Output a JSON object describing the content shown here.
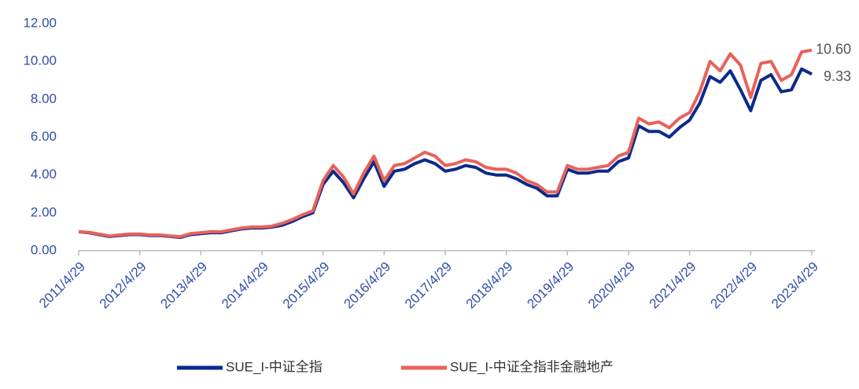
{
  "chart_data": {
    "type": "line",
    "categories": [
      "2011/4/29",
      null,
      null,
      null,
      null,
      null,
      "2012/4/29",
      null,
      null,
      null,
      null,
      null,
      "2013/4/29",
      null,
      null,
      null,
      null,
      null,
      "2014/4/29",
      null,
      null,
      null,
      null,
      null,
      "2015/4/29",
      null,
      null,
      null,
      null,
      null,
      "2016/4/29",
      null,
      null,
      null,
      null,
      null,
      "2017/4/29",
      null,
      null,
      null,
      null,
      null,
      "2018/4/29",
      null,
      null,
      null,
      null,
      null,
      "2019/4/29",
      null,
      null,
      null,
      null,
      null,
      "2020/4/29",
      null,
      null,
      null,
      null,
      null,
      "2021/4/29",
      null,
      null,
      null,
      null,
      null,
      "2022/4/29",
      null,
      null,
      null,
      null,
      null,
      "2023/4/29"
    ],
    "series": [
      {
        "name": "SUE_I-中证全指",
        "color": "#0b2a8c",
        "end_label": "9.33",
        "values": [
          1.0,
          0.95,
          0.85,
          0.75,
          0.8,
          0.85,
          0.85,
          0.8,
          0.8,
          0.75,
          0.7,
          0.85,
          0.9,
          0.95,
          0.95,
          1.05,
          1.15,
          1.2,
          1.2,
          1.25,
          1.35,
          1.55,
          1.8,
          2.0,
          3.5,
          4.2,
          3.6,
          2.8,
          3.8,
          4.7,
          3.4,
          4.2,
          4.3,
          4.6,
          4.8,
          4.6,
          4.2,
          4.3,
          4.5,
          4.4,
          4.1,
          4.0,
          4.0,
          3.8,
          3.5,
          3.3,
          2.9,
          2.9,
          4.3,
          4.1,
          4.1,
          4.2,
          4.2,
          4.7,
          4.9,
          6.6,
          6.3,
          6.3,
          6.0,
          6.5,
          6.9,
          7.8,
          9.2,
          8.9,
          9.5,
          8.5,
          7.4,
          9.0,
          9.3,
          8.4,
          8.5,
          9.6,
          9.33
        ]
      },
      {
        "name": "SUE_I-中证全指非金融地产",
        "color": "#e8625a",
        "end_label": "10.60",
        "values": [
          1.0,
          0.97,
          0.88,
          0.78,
          0.83,
          0.88,
          0.88,
          0.83,
          0.83,
          0.78,
          0.74,
          0.9,
          0.95,
          1.0,
          1.0,
          1.1,
          1.2,
          1.25,
          1.25,
          1.3,
          1.45,
          1.65,
          1.9,
          2.1,
          3.7,
          4.5,
          3.9,
          3.0,
          4.1,
          5.0,
          3.7,
          4.5,
          4.6,
          4.9,
          5.2,
          5.0,
          4.5,
          4.6,
          4.8,
          4.7,
          4.4,
          4.3,
          4.3,
          4.1,
          3.7,
          3.5,
          3.1,
          3.1,
          4.5,
          4.3,
          4.3,
          4.4,
          4.5,
          5.0,
          5.2,
          7.0,
          6.7,
          6.8,
          6.5,
          7.0,
          7.3,
          8.4,
          10.0,
          9.5,
          10.4,
          9.8,
          8.1,
          9.9,
          10.0,
          9.0,
          9.3,
          10.5,
          10.6
        ]
      }
    ],
    "ylim": [
      0,
      12
    ],
    "yticks": [
      {
        "value": 0,
        "label": "0.00"
      },
      {
        "value": 2,
        "label": "2.00"
      },
      {
        "value": 4,
        "label": "4.00"
      },
      {
        "value": 6,
        "label": "6.00"
      },
      {
        "value": 8,
        "label": "8.00"
      },
      {
        "value": 10,
        "label": "10.00"
      },
      {
        "value": 12,
        "label": "12.00"
      }
    ]
  }
}
